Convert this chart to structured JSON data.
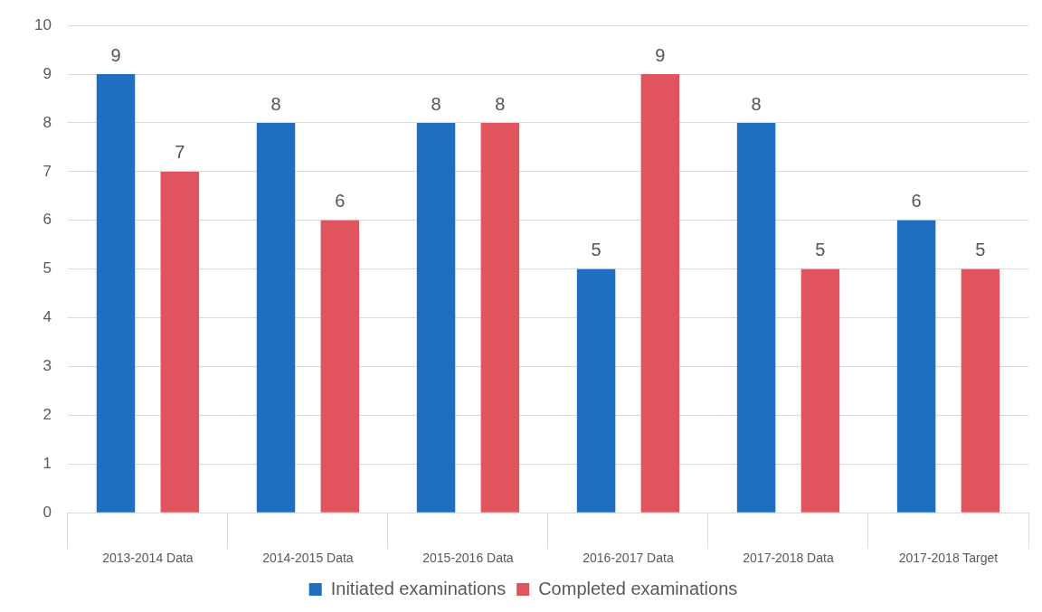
{
  "chart_data": {
    "type": "bar",
    "categories": [
      "2013-2014 Data",
      "2014-2015 Data",
      "2015-2016 Data",
      "2016-2017 Data",
      "2017-2018 Data",
      "2017-2018 Target"
    ],
    "series": [
      {
        "name": "Initiated examinations",
        "color": "#1f6fc0",
        "values": [
          9,
          8,
          8,
          5,
          8,
          6
        ]
      },
      {
        "name": "Completed examinations",
        "color": "#e0555d",
        "values": [
          7,
          6,
          8,
          9,
          5,
          5
        ]
      }
    ],
    "ylim": [
      0,
      10
    ],
    "yticks": [
      0,
      1,
      2,
      3,
      4,
      5,
      6,
      7,
      8,
      9,
      10
    ],
    "grid": "y",
    "legend": "bottom",
    "data_labels": true
  }
}
